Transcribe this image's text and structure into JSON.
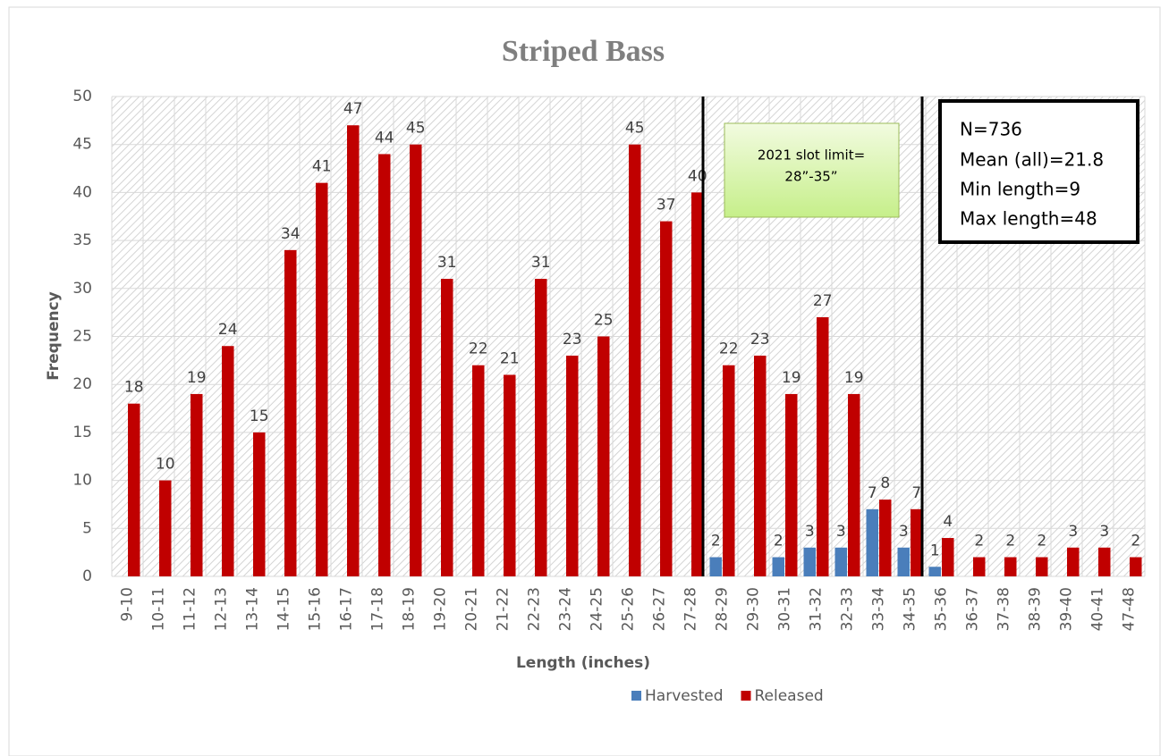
{
  "chart_data": {
    "type": "bar",
    "title": "Striped Bass",
    "x_label": "Length (inches)",
    "y_label": "Frequency",
    "categories": [
      "9-10",
      "10-11",
      "11-12",
      "12-13",
      "13-14",
      "14-15",
      "15-16",
      "16-17",
      "17-18",
      "18-19",
      "19-20",
      "20-21",
      "21-22",
      "22-23",
      "23-24",
      "24-25",
      "25-26",
      "26-27",
      "27-28",
      "28-29",
      "29-30",
      "30-31",
      "31-32",
      "32-33",
      "33-34",
      "34-35",
      "35-36",
      "36-37",
      "37-38",
      "38-39",
      "39-40",
      "40-41",
      "47-48"
    ],
    "series": [
      {
        "name": "Harvested",
        "color": "#4a7ebb",
        "values": [
          null,
          null,
          null,
          null,
          null,
          null,
          null,
          null,
          null,
          null,
          null,
          null,
          null,
          null,
          null,
          null,
          null,
          null,
          null,
          2,
          null,
          2,
          3,
          3,
          7,
          3,
          1,
          null,
          null,
          null,
          null,
          null,
          null
        ]
      },
      {
        "name": "Released",
        "color": "#c00000",
        "values": [
          18,
          10,
          19,
          24,
          15,
          34,
          41,
          47,
          44,
          45,
          31,
          22,
          21,
          31,
          23,
          25,
          45,
          37,
          40,
          22,
          23,
          19,
          27,
          19,
          8,
          7,
          4,
          2,
          2,
          2,
          3,
          3,
          2
        ]
      }
    ],
    "ylim": [
      0,
      50
    ],
    "yticks": [
      0,
      5,
      10,
      15,
      20,
      25,
      30,
      35,
      40,
      45,
      50
    ],
    "grid": true,
    "legend": "bottom",
    "slot_note": [
      "2021 slot limit=",
      "28”-35”"
    ],
    "stats": [
      "N=736",
      "Mean (all)=21.8",
      "Min length=9",
      "Max length=48"
    ]
  }
}
